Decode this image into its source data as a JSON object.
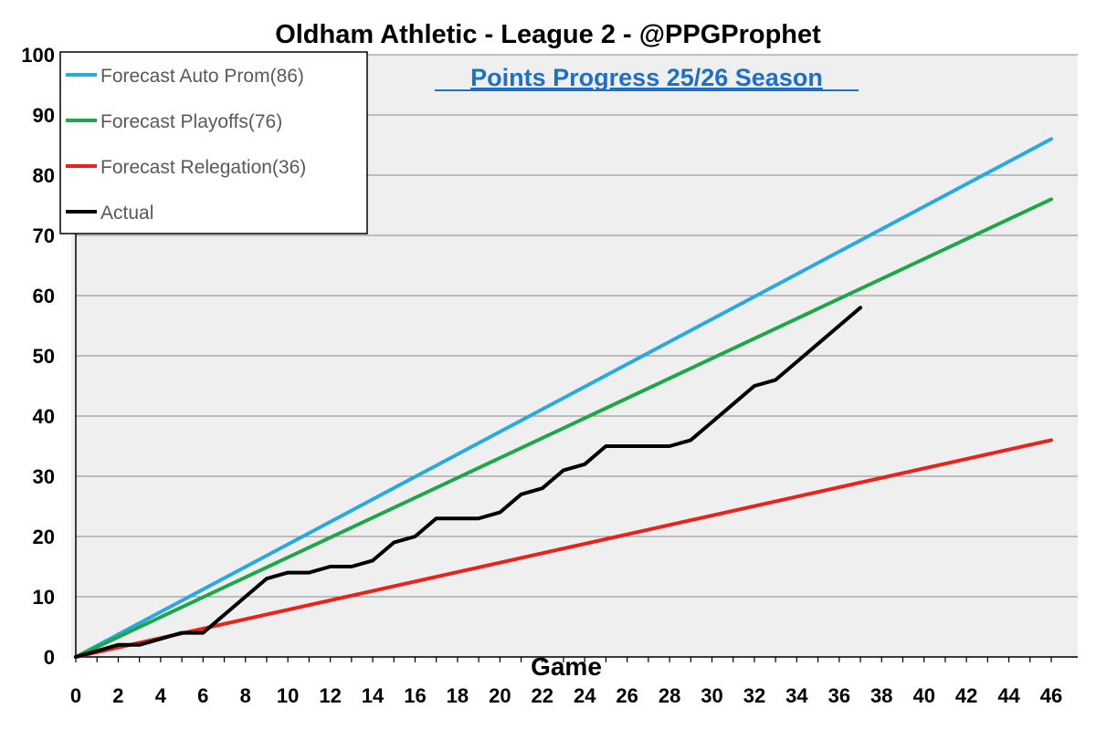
{
  "chart_data": {
    "type": "line",
    "title": "Oldham Athletic - League 2 - @PPGProphet",
    "subtitle": "Points Progress 25/26 Season",
    "xlabel": "Game",
    "ylabel": "",
    "xlim": [
      0,
      46
    ],
    "ylim": [
      0,
      100
    ],
    "xticks": [
      0,
      2,
      4,
      6,
      8,
      10,
      12,
      14,
      16,
      18,
      20,
      22,
      24,
      26,
      28,
      30,
      32,
      34,
      36,
      38,
      40,
      42,
      44,
      46
    ],
    "yticks": [
      0,
      10,
      20,
      30,
      40,
      50,
      60,
      70,
      80,
      90,
      100
    ],
    "grid": true,
    "legend_position": "top-left",
    "series": [
      {
        "name": "Forecast Auto Prom(86)",
        "color": "#29a9e0",
        "x": [
          0,
          46
        ],
        "values": [
          0,
          86
        ]
      },
      {
        "name": "Forecast Playoffs(76)",
        "color": "#1fa64a",
        "x": [
          0,
          46
        ],
        "values": [
          0,
          76
        ]
      },
      {
        "name": "Forecast Relegation(36)",
        "color": "#e8231c",
        "x": [
          0,
          46
        ],
        "values": [
          0,
          36
        ]
      },
      {
        "name": "Actual",
        "color": "#000000",
        "x": [
          0,
          1,
          2,
          3,
          4,
          5,
          6,
          7,
          8,
          9,
          10,
          11,
          12,
          13,
          14,
          15,
          16,
          17,
          18,
          19,
          20,
          21,
          22,
          23,
          24,
          25,
          26,
          27,
          28,
          29,
          30,
          31,
          32,
          33,
          34,
          35,
          36,
          37
        ],
        "values": [
          0,
          1,
          2,
          2,
          3,
          4,
          4,
          7,
          10,
          13,
          14,
          14,
          15,
          15,
          16,
          19,
          20,
          23,
          23,
          23,
          24,
          27,
          28,
          31,
          32,
          35,
          35,
          35,
          35,
          36,
          39,
          42,
          45,
          46,
          49,
          52,
          55,
          58
        ]
      }
    ]
  }
}
